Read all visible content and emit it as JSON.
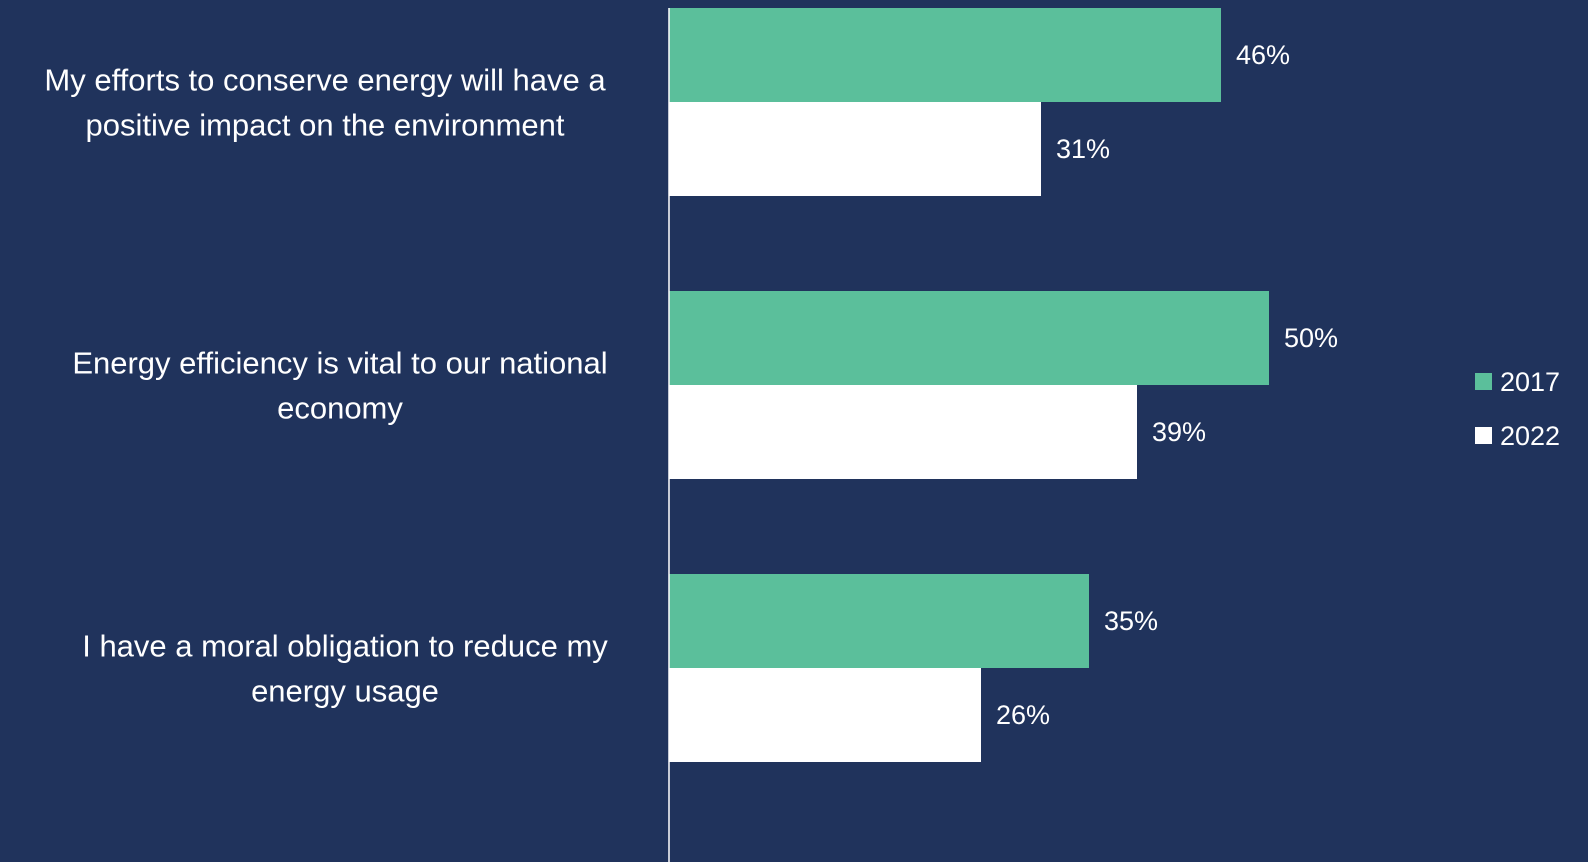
{
  "chart_data": {
    "type": "bar",
    "orientation": "horizontal",
    "categories": [
      "My efforts to conserve energy will have a positive impact on the environment",
      "Energy efficiency is vital to our national economy",
      "I have a moral obligation to reduce my energy usage"
    ],
    "category_lines": [
      [
        "My efforts to conserve energy will have a",
        "positive impact on the environment"
      ],
      [
        "Energy efficiency is vital to our national",
        "economy"
      ],
      [
        "I have a moral obligation to reduce my",
        "energy usage"
      ]
    ],
    "series": [
      {
        "name": "2017",
        "values": [
          46,
          50,
          35
        ],
        "labels": [
          "46%",
          "50%",
          "35%"
        ],
        "color": "#5bbf9b"
      },
      {
        "name": "2022",
        "values": [
          31,
          39,
          26
        ],
        "labels": [
          "31%",
          "39%",
          "26%"
        ],
        "color": "#ffffff"
      }
    ],
    "value_unit": "%",
    "xlim": [
      0,
      70
    ],
    "xaxis_visible": false,
    "grid": false,
    "legend_position": "right",
    "background": "#20335c",
    "axis_line_color": "#ffffff",
    "text_color": "#ffffff"
  }
}
